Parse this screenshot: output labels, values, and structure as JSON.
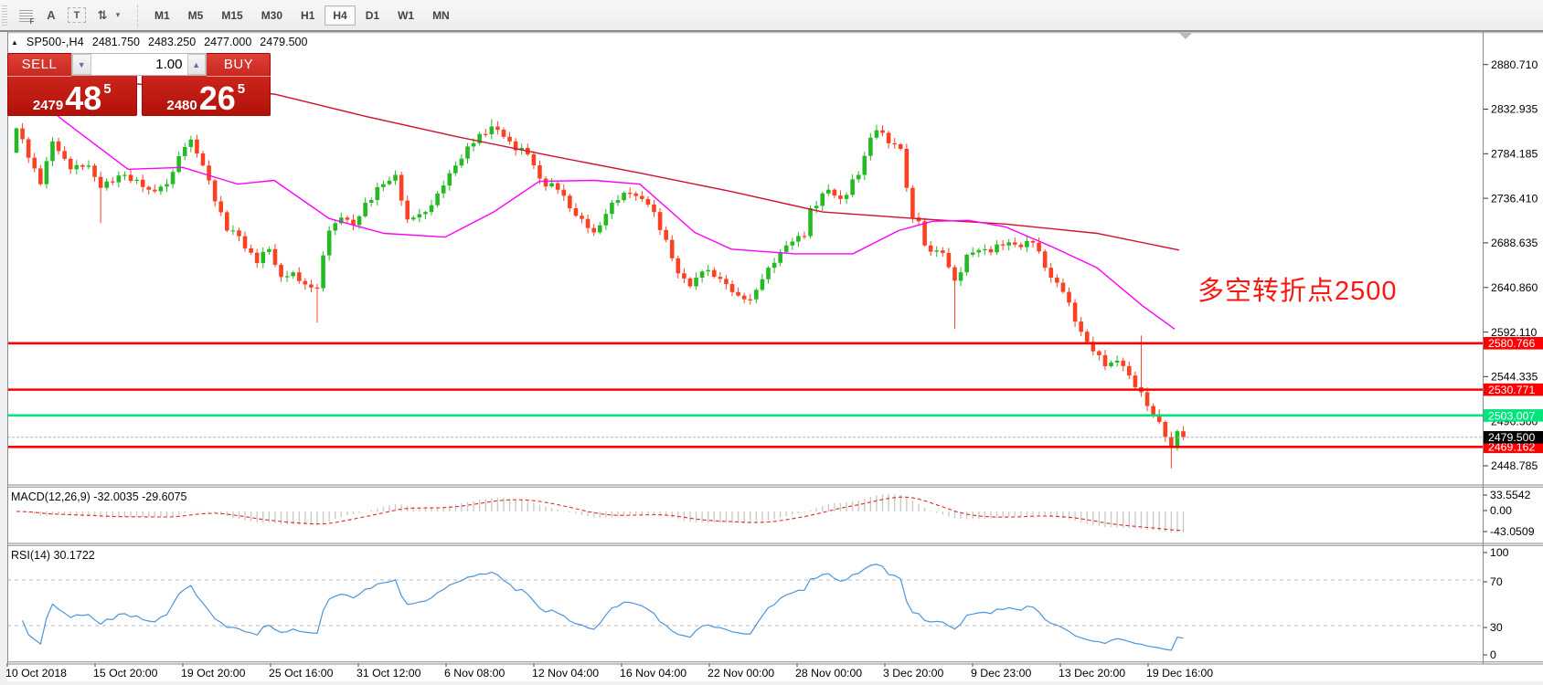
{
  "toolbar": {
    "icons": [
      {
        "name": "expert-grid-icon",
        "glyph": "F"
      },
      {
        "name": "text-label-icon",
        "glyph": "A"
      },
      {
        "name": "text-box-icon",
        "glyph": "T"
      },
      {
        "name": "cycle-arrows-icon",
        "glyph": "⇅"
      },
      {
        "name": "dropdown-caret-icon",
        "glyph": "▾"
      }
    ],
    "timeframes": [
      "M1",
      "M5",
      "M15",
      "M30",
      "H1",
      "H4",
      "D1",
      "W1",
      "MN"
    ],
    "active_timeframe": "H4"
  },
  "chart": {
    "symbol_period": "SP500-,H4",
    "quote_open": "2481.750",
    "quote_high": "2483.250",
    "quote_low": "2477.000",
    "quote_close": "2479.500",
    "expand_marker": "▲"
  },
  "trade_panel": {
    "sell_label": "SELL",
    "buy_label": "BUY",
    "volume": "1.00",
    "sell_price_small": "2479",
    "sell_price_big": "48",
    "sell_price_sup": "5",
    "buy_price_small": "2480",
    "buy_price_big": "26",
    "buy_price_sup": "5"
  },
  "annotation": {
    "text": "多空转折点2500",
    "color": "#fb1710"
  },
  "price_axis": {
    "ticks": [
      "2880.710",
      "2832.935",
      "2784.185",
      "2736.410",
      "2688.635",
      "2640.860",
      "2592.110",
      "2544.335",
      "2496.560",
      "2448.785"
    ],
    "level_labels": [
      {
        "text": "2580.766",
        "price": 2580.766,
        "bg": "#ff0000",
        "fg": "#ffffff"
      },
      {
        "text": "2530.771",
        "price": 2530.771,
        "bg": "#ff0000",
        "fg": "#ffffff"
      },
      {
        "text": "2503.007",
        "price": 2503.007,
        "bg": "#00e57c",
        "fg": "#ffffff"
      },
      {
        "text": "2469.162",
        "price": 2469.162,
        "bg": "#ff0000",
        "fg": "#ffffff"
      }
    ],
    "current_label": {
      "text": "2479.500",
      "price": 2479.5,
      "bg": "#000000",
      "fg": "#ffffff"
    }
  },
  "time_axis": [
    "10 Oct 2018",
    "15 Oct 20:00",
    "19 Oct 20:00",
    "25 Oct 16:00",
    "31 Oct 12:00",
    "6 Nov 08:00",
    "12 Nov 04:00",
    "16 Nov 04:00",
    "22 Nov 00:00",
    "28 Nov 00:00",
    "3 Dec 20:00",
    "9 Dec 23:00",
    "13 Dec 20:00",
    "19 Dec 16:00"
  ],
  "indicators": {
    "macd": {
      "label": "MACD(12,26,9) -32.0035 -29.6075",
      "params": [
        12,
        26,
        9
      ],
      "value_main": -32.0035,
      "value_signal": -29.6075,
      "axis_labels": [
        "33.5542",
        "0.00",
        "-43.0509"
      ]
    },
    "rsi": {
      "label": "RSI(14) 30.1722",
      "period": 14,
      "value": 30.1722,
      "axis_labels": [
        "100",
        "70",
        "30",
        "0"
      ],
      "levels": [
        70,
        30
      ]
    }
  },
  "colors": {
    "bull": "#26b926",
    "bear": "#fb4122",
    "ma_fast": "#ff00ff",
    "ma_slow": "#d01030",
    "hline_red": "#ff0000",
    "hline_green": "#00e57c",
    "current_line": "#b4b4b4",
    "macd_hist": "#cbcbcb",
    "macd_signal": "#dd2a2a",
    "rsi_line": "#4f94d8",
    "panel_red": "#c8221a"
  },
  "chart_data": {
    "type": "candlestick",
    "instrument": "SP500-",
    "period": "H4",
    "price_range_top": 2880.71,
    "price_range_bottom": 2448.785,
    "candle_count": 195,
    "first_open": 2786,
    "close_anchors": [
      [
        0,
        2812
      ],
      [
        4,
        2752
      ],
      [
        6,
        2798
      ],
      [
        9,
        2768
      ],
      [
        12,
        2772
      ],
      [
        14,
        2748
      ],
      [
        18,
        2762
      ],
      [
        22,
        2746
      ],
      [
        25,
        2752
      ],
      [
        28,
        2792
      ],
      [
        29,
        2800
      ],
      [
        32,
        2756
      ],
      [
        35,
        2702
      ],
      [
        37,
        2696
      ],
      [
        40,
        2667
      ],
      [
        42,
        2682
      ],
      [
        44,
        2652
      ],
      [
        46,
        2657
      ],
      [
        48,
        2644
      ],
      [
        50,
        2640
      ],
      [
        52,
        2702
      ],
      [
        54,
        2716
      ],
      [
        56,
        2708
      ],
      [
        58,
        2732
      ],
      [
        61,
        2752
      ],
      [
        63,
        2762
      ],
      [
        65,
        2714
      ],
      [
        68,
        2722
      ],
      [
        70,
        2742
      ],
      [
        73,
        2772
      ],
      [
        77,
        2806
      ],
      [
        79,
        2814
      ],
      [
        82,
        2798
      ],
      [
        85,
        2784
      ],
      [
        87,
        2758
      ],
      [
        90,
        2746
      ],
      [
        93,
        2718
      ],
      [
        96,
        2700
      ],
      [
        99,
        2732
      ],
      [
        102,
        2742
      ],
      [
        104,
        2736
      ],
      [
        106,
        2722
      ],
      [
        108,
        2692
      ],
      [
        110,
        2656
      ],
      [
        112,
        2642
      ],
      [
        114,
        2658
      ],
      [
        117,
        2650
      ],
      [
        120,
        2632
      ],
      [
        122,
        2628
      ],
      [
        125,
        2662
      ],
      [
        128,
        2686
      ],
      [
        131,
        2696
      ],
      [
        132,
        2726
      ],
      [
        135,
        2746
      ],
      [
        137,
        2736
      ],
      [
        140,
        2762
      ],
      [
        142,
        2802
      ],
      [
        143,
        2810
      ],
      [
        145,
        2796
      ],
      [
        147,
        2790
      ],
      [
        148,
        2748
      ],
      [
        149,
        2716
      ],
      [
        150,
        2712
      ],
      [
        151,
        2686
      ],
      [
        154,
        2678
      ],
      [
        156,
        2648
      ],
      [
        158,
        2676
      ],
      [
        161,
        2682
      ],
      [
        164,
        2686
      ],
      [
        169,
        2689
      ],
      [
        171,
        2662
      ],
      [
        174,
        2636
      ],
      [
        176,
        2604
      ],
      [
        179,
        2572
      ],
      [
        181,
        2556
      ],
      [
        183,
        2562
      ],
      [
        185,
        2546
      ],
      [
        187,
        2528
      ],
      [
        189,
        2504
      ],
      [
        190,
        2496
      ],
      [
        192,
        2468
      ],
      [
        193,
        2486
      ],
      [
        194,
        2479.5
      ]
    ],
    "special_wicks": [
      {
        "i": 14,
        "low": 2710
      },
      {
        "i": 50,
        "low": 2603
      },
      {
        "i": 79,
        "high": 2822
      },
      {
        "i": 143,
        "high": 2816
      },
      {
        "i": 156,
        "low": 2596
      },
      {
        "i": 187,
        "high": 2589
      },
      {
        "i": 192,
        "low": 2446
      }
    ],
    "ma_fast_points": [
      [
        8,
        2870
      ],
      [
        70,
        2820
      ],
      [
        140,
        2768
      ],
      [
        200,
        2770
      ],
      [
        260,
        2752
      ],
      [
        300,
        2756
      ],
      [
        360,
        2715
      ],
      [
        420,
        2699
      ],
      [
        487,
        2695
      ],
      [
        540,
        2722
      ],
      [
        590,
        2755
      ],
      [
        650,
        2756
      ],
      [
        700,
        2752
      ],
      [
        760,
        2700
      ],
      [
        800,
        2682
      ],
      [
        870,
        2677
      ],
      [
        933,
        2677
      ],
      [
        983,
        2702
      ],
      [
        1020,
        2712
      ],
      [
        1060,
        2713
      ],
      [
        1100,
        2706
      ],
      [
        1150,
        2685
      ],
      [
        1200,
        2662
      ],
      [
        1250,
        2621
      ],
      [
        1285,
        2596
      ]
    ],
    "ma_slow_points": [
      [
        8,
        2880
      ],
      [
        100,
        2866
      ],
      [
        200,
        2854
      ],
      [
        300,
        2849
      ],
      [
        400,
        2825
      ],
      [
        500,
        2803
      ],
      [
        600,
        2783
      ],
      [
        700,
        2764
      ],
      [
        800,
        2744
      ],
      [
        900,
        2722
      ],
      [
        1000,
        2715
      ],
      [
        1100,
        2709
      ],
      [
        1200,
        2699
      ],
      [
        1290,
        2681
      ]
    ],
    "hlines": [
      {
        "price": 2580.766,
        "color": "#ff0000"
      },
      {
        "price": 2530.771,
        "color": "#ff0000"
      },
      {
        "price": 2503.007,
        "color": "#00e57c"
      },
      {
        "price": 2469.162,
        "color": "#ff0000"
      }
    ],
    "current_price": 2479.5
  }
}
